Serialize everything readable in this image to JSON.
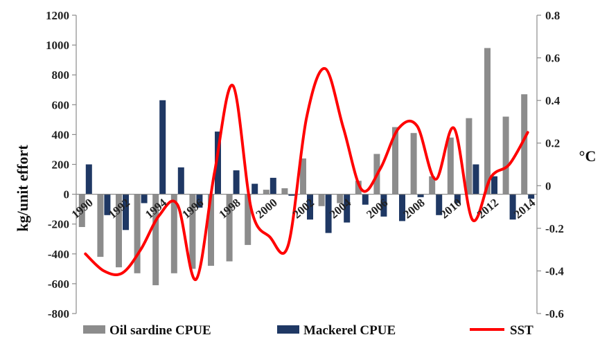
{
  "chart_data": {
    "type": "bar",
    "x": [
      "1990",
      "1991",
      "1992",
      "1993",
      "1994",
      "1995",
      "1996",
      "1997",
      "1998",
      "1999",
      "2000",
      "2001",
      "2002",
      "2003",
      "2004",
      "2005",
      "2006",
      "2007",
      "2008",
      "2009",
      "2010",
      "2011",
      "2012",
      "2013",
      "2014"
    ],
    "x_tick_labels": [
      "1990",
      "1992",
      "1994",
      "1996",
      "1998",
      "2000",
      "2002",
      "2004",
      "2006",
      "2008",
      "2010",
      "2012",
      "2014"
    ],
    "ylabel": "kg/unit effort",
    "y2label": "°C",
    "ylim": [
      -800,
      1200
    ],
    "y2lim": [
      -0.6,
      0.8
    ],
    "y_ticks": [
      "-800",
      "-600",
      "-400",
      "-200",
      "0",
      "200",
      "400",
      "600",
      "800",
      "1000",
      "1200"
    ],
    "y2_ticks": [
      "-0.6",
      "-0.4",
      "-0.2",
      "0",
      "0.2",
      "0.4",
      "0.6",
      "0.8"
    ],
    "series": [
      {
        "name": "Oil sardine CPUE",
        "type": "bar",
        "axis": "left",
        "color": "#8c8c8c",
        "values": [
          -220,
          -420,
          -490,
          -530,
          -610,
          -530,
          -500,
          -480,
          -450,
          -340,
          30,
          40,
          240,
          -80,
          -60,
          90,
          270,
          450,
          410,
          120,
          380,
          510,
          980,
          520,
          670
        ]
      },
      {
        "name": "Mackerel CPUE",
        "type": "bar",
        "axis": "left",
        "color": "#1f3864",
        "values": [
          200,
          -140,
          -240,
          -60,
          630,
          180,
          -90,
          420,
          160,
          70,
          110,
          -10,
          -170,
          -260,
          -190,
          -70,
          -150,
          -180,
          -20,
          -140,
          -60,
          200,
          120,
          -170,
          -30
        ]
      },
      {
        "name": "SST",
        "type": "line",
        "axis": "right",
        "color": "#ff0000",
        "values": [
          -0.32,
          -0.4,
          -0.41,
          -0.3,
          -0.14,
          -0.09,
          -0.44,
          0.06,
          0.47,
          -0.11,
          -0.24,
          -0.28,
          0.32,
          0.55,
          0.27,
          -0.02,
          0.08,
          0.27,
          0.28,
          0.03,
          0.27,
          -0.16,
          0.04,
          0.1,
          0.25
        ]
      }
    ],
    "legend_position": "bottom",
    "grid": false
  }
}
